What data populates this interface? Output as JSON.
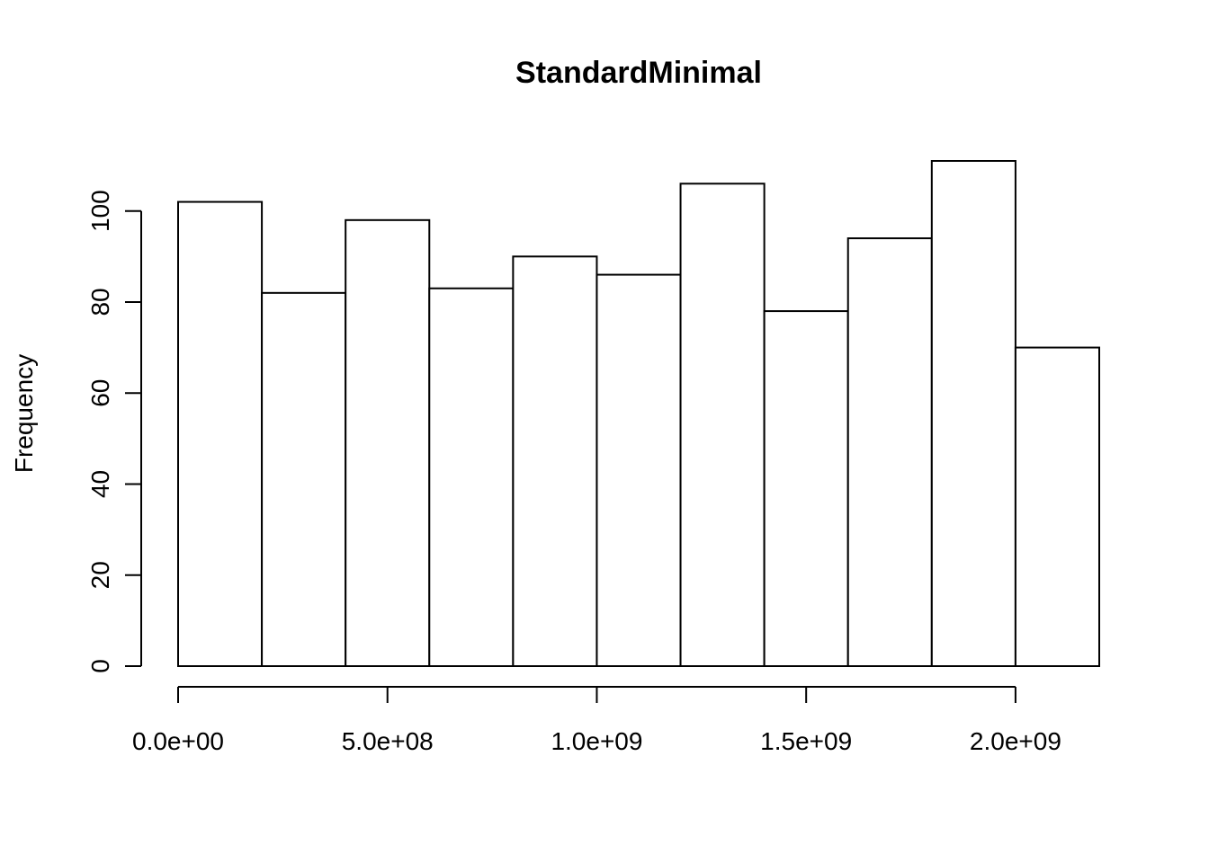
{
  "chart_data": {
    "type": "bar",
    "title": "StandardMinimal",
    "xlabel": "",
    "ylabel": "Frequency",
    "bin_edges": [
      0,
      200000000,
      400000000,
      600000000,
      800000000,
      1000000000,
      1200000000,
      1400000000,
      1600000000,
      1800000000,
      2000000000,
      2200000000
    ],
    "values": [
      102,
      82,
      98,
      83,
      90,
      86,
      106,
      78,
      94,
      111,
      70
    ],
    "x_ticks": [
      0,
      500000000,
      1000000000,
      1500000000,
      2000000000
    ],
    "x_tick_labels": [
      "0.0e+00",
      "5.0e+08",
      "1.0e+09",
      "1.5e+09",
      "2.0e+09"
    ],
    "y_ticks": [
      0,
      20,
      40,
      60,
      80,
      100
    ],
    "y_tick_labels": [
      "0",
      "20",
      "40",
      "60",
      "80",
      "100"
    ],
    "xlim": [
      0,
      2200000000
    ],
    "ylim": [
      0,
      111
    ],
    "grid": false,
    "legend": "none",
    "bar_fill": "#ffffff",
    "bar_stroke": "#000000"
  }
}
